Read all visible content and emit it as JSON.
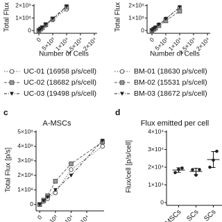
{
  "chart_data": [
    {
      "type": "line",
      "y_label": "Total Flux [p/s]",
      "x_label": "Number of Cells",
      "x": [
        0,
        625,
        1250,
        2500,
        5000,
        10000
      ],
      "xlim": [
        -1000,
        21000
      ],
      "xticks": [
        0,
        {
          "value": 5000,
          "label": "5×10³"
        },
        {
          "value": 10000,
          "label": "1×10⁴"
        },
        {
          "value": 15000,
          "label": "1.5×10⁴"
        },
        {
          "value": 20000,
          "label": "2×10⁴"
        }
      ],
      "ylim": [
        0,
        200000000
      ],
      "yticks": [
        0,
        {
          "value": 100000000,
          "label": "1×10⁸"
        },
        {
          "value": 200000000,
          "label": "2×10⁸"
        }
      ],
      "series": [
        {
          "name": "UC-01 (16958 p/s/cell)",
          "color": "#555555",
          "marker": "circle",
          "dash": "1.5,2",
          "values": [
            1000000,
            11000000,
            21000000,
            42000000,
            85000000,
            170000000
          ]
        },
        {
          "name": "UC-02 (18682 p/s/cell)",
          "color": "#555555",
          "marker": "square",
          "dash": "4,2",
          "values": [
            1000000,
            12000000,
            23000000,
            47000000,
            93000000,
            187000000
          ]
        },
        {
          "name": "UC-03 (19498 p/s/cell)",
          "color": "#222222",
          "marker": "triangle",
          "dash": "4,2,1,2",
          "values": [
            1000000,
            12000000,
            24000000,
            49000000,
            97000000,
            195000000
          ]
        }
      ]
    },
    {
      "type": "line",
      "y_label": "Total Flux [p/s]",
      "x_label": "Number of Cells",
      "x": [
        0,
        625,
        1250,
        2500,
        5000,
        10000
      ],
      "xlim": [
        -1000,
        21000
      ],
      "xticks": [
        0,
        {
          "value": 5000,
          "label": "5×10³"
        },
        {
          "value": 10000,
          "label": "1×10⁴"
        },
        {
          "value": 15000,
          "label": "1.5×10⁴"
        },
        {
          "value": 20000,
          "label": "2×10⁴"
        }
      ],
      "ylim": [
        0,
        200000000
      ],
      "yticks": [
        0,
        {
          "value": 100000000,
          "label": "1×10⁸"
        },
        {
          "value": 200000000,
          "label": "2×10⁸"
        }
      ],
      "series": [
        {
          "name": "BM-01 (18630 p/s/cell)",
          "color": "#555555",
          "marker": "circle",
          "dash": "1.5,2",
          "values": [
            1000000,
            12000000,
            23000000,
            47000000,
            93000000,
            186000000
          ]
        },
        {
          "name": "BM-02 (15531 p/s/cell)",
          "color": "#555555",
          "marker": "square",
          "dash": "4,2",
          "values": [
            1000000,
            10000000,
            19000000,
            39000000,
            78000000,
            155000000
          ]
        },
        {
          "name": "BM-03 (18672 p/s/cell)",
          "color": "#222222",
          "marker": "triangle",
          "dash": "4,2,1,2",
          "values": [
            1000000,
            12000000,
            23000000,
            47000000,
            93000000,
            187000000
          ]
        }
      ]
    },
    {
      "type": "line",
      "label": "c",
      "title": "A-MSCs",
      "y_label": "Total Flux [p/s]",
      "x": [
        0,
        1250,
        2500,
        5000,
        10000,
        20000
      ],
      "xlim": [
        -500,
        20500
      ],
      "xticks": [
        0,
        {
          "value": 5000,
          "label": "5×10³"
        },
        {
          "value": 10000,
          "label": "1×10⁴"
        },
        {
          "value": 15000,
          "label": "1.5×10⁴"
        }
      ],
      "ylim": [
        -25000000,
        500000000
      ],
      "yticks": [
        0,
        {
          "value": 100000000,
          "label": "1×10⁸"
        },
        {
          "value": 200000000,
          "label": "2×10⁸"
        },
        {
          "value": 300000000,
          "label": "3×10⁸"
        },
        {
          "value": 400000000,
          "label": "4×10⁸"
        },
        {
          "value": 500000000,
          "label": "5×10⁸"
        }
      ],
      "series": [
        {
          "color": "#555555",
          "marker": "circle",
          "dash": "1.5,2",
          "values": [
            0,
            20000000,
            40000000,
            80000000,
            240000000,
            400000000
          ]
        },
        {
          "color": "#555555",
          "marker": "square",
          "dash": "4,2",
          "values": [
            0,
            30000000,
            60000000,
            160000000,
            280000000,
            430000000
          ]
        },
        {
          "color": "#222222",
          "marker": "triangle",
          "dash": "4,2,1,2",
          "values": [
            0,
            25000000,
            50000000,
            100000000,
            200000000,
            440000000
          ]
        }
      ]
    },
    {
      "type": "dot",
      "label": "d",
      "title": "Flux emitted per cell",
      "y_label": "Flux/cell [p/s/cell]",
      "categories": [
        "MSCs",
        "SCs",
        "SCs"
      ],
      "ylim": [
        0,
        40000
      ],
      "yticks": [
        0,
        {
          "value": 10000,
          "label": "1×10⁴"
        },
        {
          "value": 20000,
          "label": "2×10⁴"
        },
        {
          "value": 30000,
          "label": "3×10⁴"
        },
        {
          "value": 40000,
          "label": "4×10⁴"
        }
      ],
      "series": [
        {
          "color": "#222222",
          "values": [
            16958,
            18630,
            20000
          ]
        },
        {
          "color": "#222222",
          "values": [
            18682,
            15531,
            24000
          ]
        },
        {
          "color": "#222222",
          "values": [
            19498,
            18672,
            29000
          ]
        }
      ],
      "mean": [
        18379,
        17611,
        24333
      ],
      "sd": [
        1284,
        1806,
        4509
      ]
    }
  ]
}
